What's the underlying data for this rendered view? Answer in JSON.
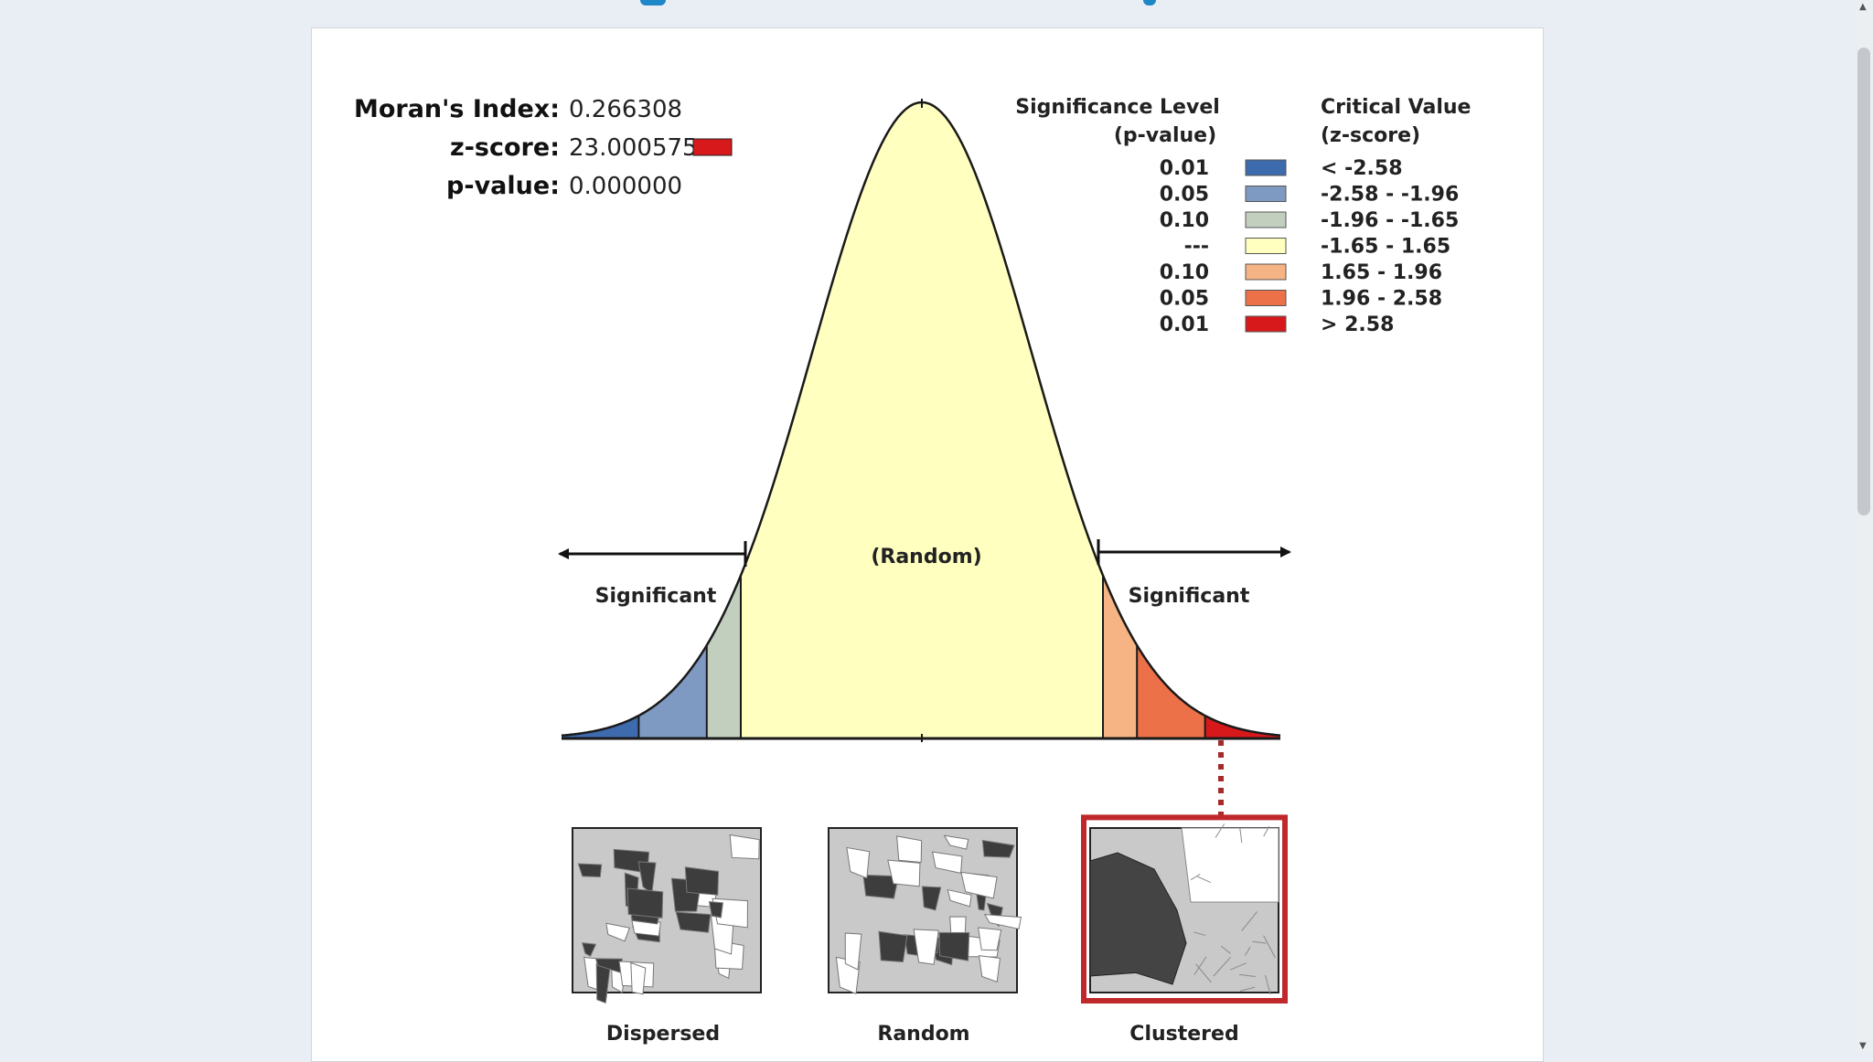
{
  "stats": {
    "moran_label": "Moran's Index:",
    "moran_value": "0.266308",
    "z_label": "z-score:",
    "z_value": "23.000575",
    "p_label": "p-value:",
    "p_value": "0.000000"
  },
  "legend": {
    "significance_header_1": "Significance Level",
    "significance_header_2": "(p-value)",
    "critical_header_1": "Critical Value",
    "critical_header_2": "(z-score)",
    "rows": [
      {
        "p": "0.01",
        "z": "< -2.58",
        "color": "#3e6bad"
      },
      {
        "p": "0.05",
        "z": "-2.58 - -1.96",
        "color": "#7f9ac2"
      },
      {
        "p": "0.10",
        "z": "-1.96 - -1.65",
        "color": "#c3cfbe"
      },
      {
        "p": "---",
        "z": "-1.65 - 1.65",
        "color": "#ffffbf"
      },
      {
        "p": "0.10",
        "z": "1.65 - 1.96",
        "color": "#f6b383"
      },
      {
        "p": "0.05",
        "z": "1.96 - 2.58",
        "color": "#ec7149"
      },
      {
        "p": "0.01",
        "z": "> 2.58",
        "color": "#d7191c"
      }
    ]
  },
  "curve": {
    "random_label": "(Random)",
    "left_label": "Significant",
    "right_label": "Significant"
  },
  "patterns": {
    "dispersed": "Dispersed",
    "random": "Random",
    "clustered": "Clustered",
    "selected": "Clustered"
  },
  "colors": {
    "z_swatch": "#d7191c",
    "highlight": "#c0282b"
  }
}
